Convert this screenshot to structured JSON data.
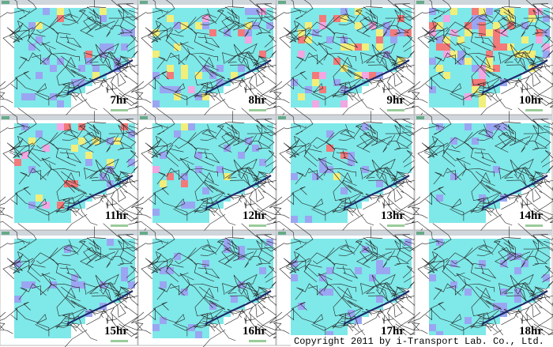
{
  "panels": [
    {
      "label": "7hr"
    },
    {
      "label": "8hr"
    },
    {
      "label": "9hr"
    },
    {
      "label": "10hr"
    },
    {
      "label": "11hr"
    },
    {
      "label": "12hr"
    },
    {
      "label": "13hr"
    },
    {
      "label": "14hr"
    },
    {
      "label": "15hr"
    },
    {
      "label": "16hr"
    },
    {
      "label": "17hr"
    },
    {
      "label": "18hr"
    }
  ],
  "copyright": "Copyright 2011 by i-Transport Lab. Co., Ltd."
}
